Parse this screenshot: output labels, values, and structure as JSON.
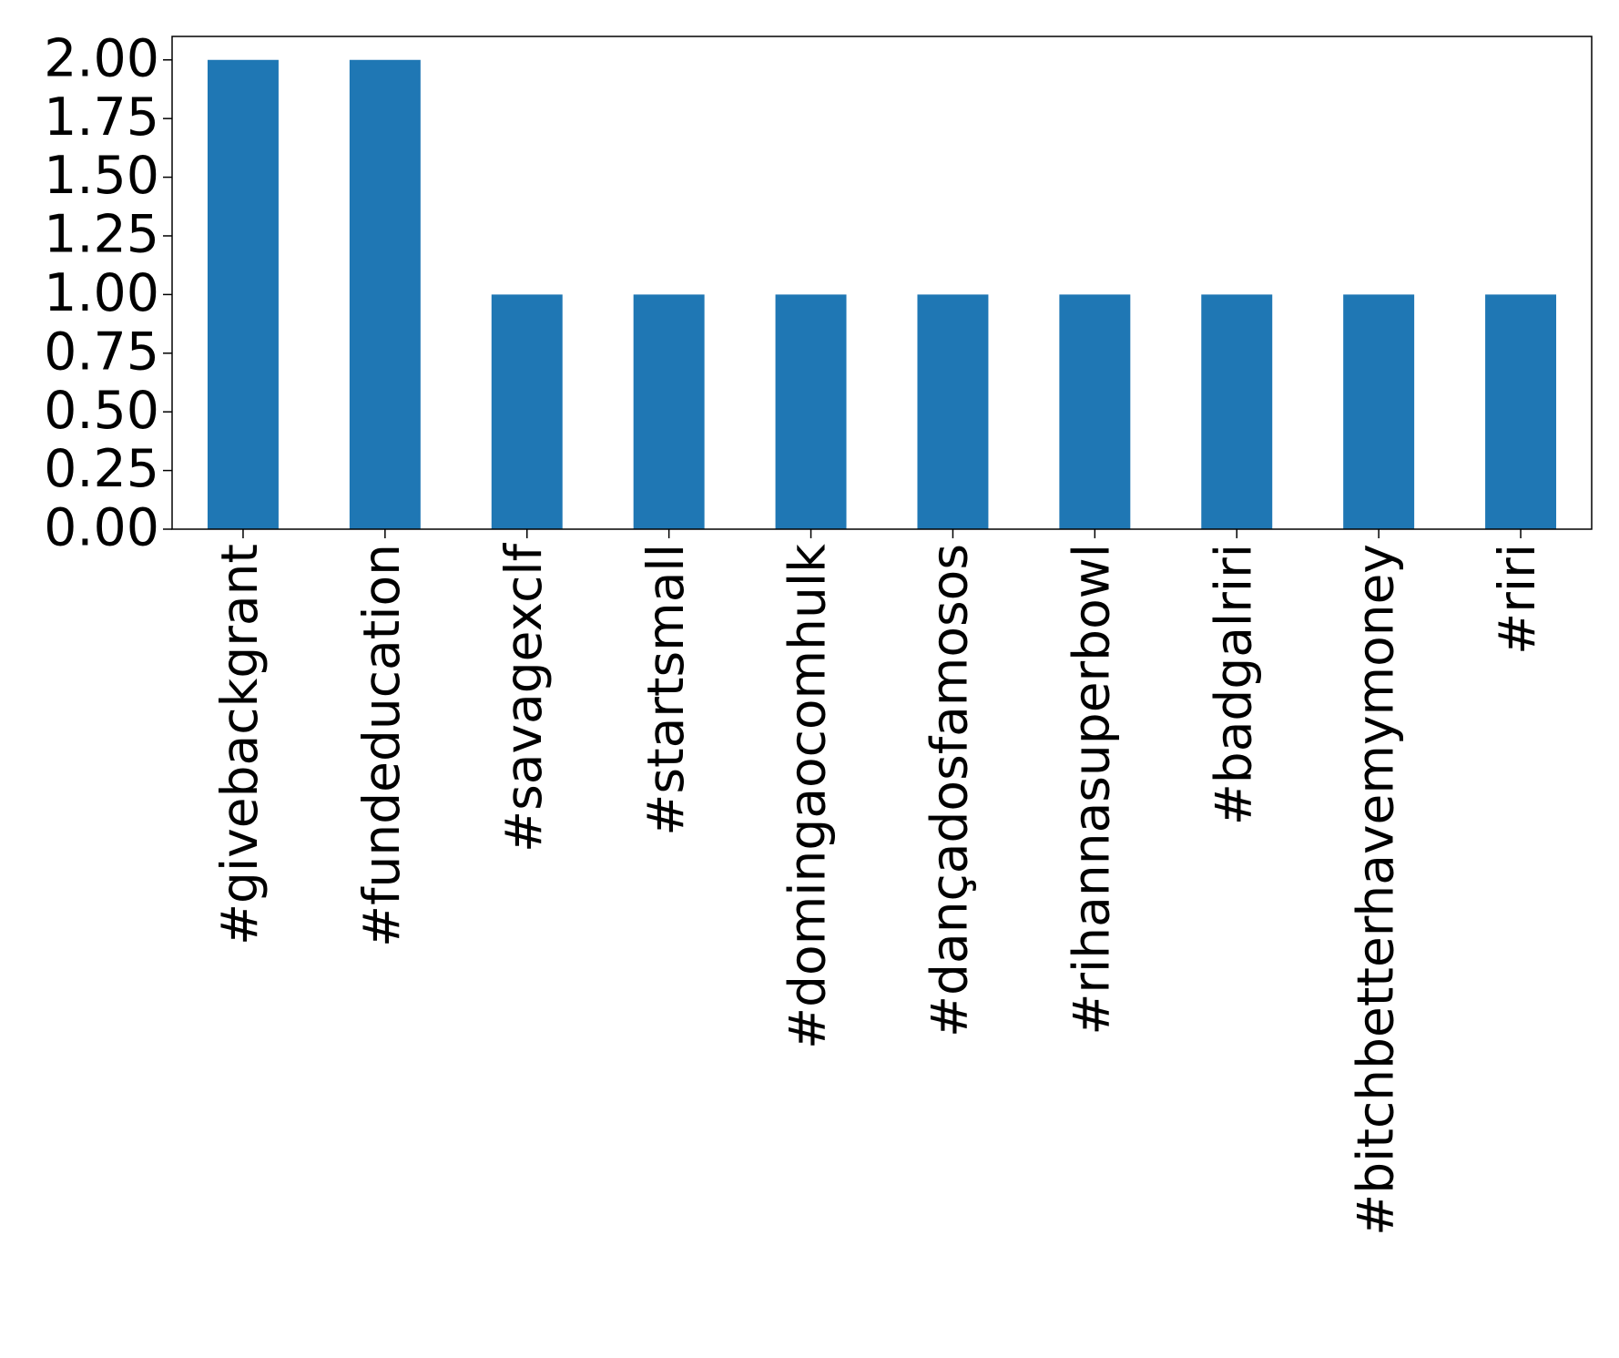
{
  "chart_data": {
    "type": "bar",
    "categories": [
      "#givebackgrant",
      "#fundeducation",
      "#savagexclf",
      "#startsmall",
      "#domingaocomhulk",
      "#dançadosfamosos",
      "#rihannasuperbowl",
      "#badgalriri",
      "#bitchbetterhavemymoney",
      "#riri"
    ],
    "values": [
      2,
      2,
      1,
      1,
      1,
      1,
      1,
      1,
      1,
      1
    ],
    "color": "#1f77b4",
    "ylim": [
      0,
      2.1
    ],
    "yticks": [
      {
        "value": 0,
        "label": "0.00"
      },
      {
        "value": 0.25,
        "label": "0.25"
      },
      {
        "value": 0.5,
        "label": "0.50"
      },
      {
        "value": 0.75,
        "label": "0.75"
      },
      {
        "value": 1,
        "label": "1.00"
      },
      {
        "value": 1.25,
        "label": "1.25"
      },
      {
        "value": 1.5,
        "label": "1.50"
      },
      {
        "value": 1.75,
        "label": "1.75"
      },
      {
        "value": 2,
        "label": "2.00"
      }
    ],
    "grid": false
  }
}
